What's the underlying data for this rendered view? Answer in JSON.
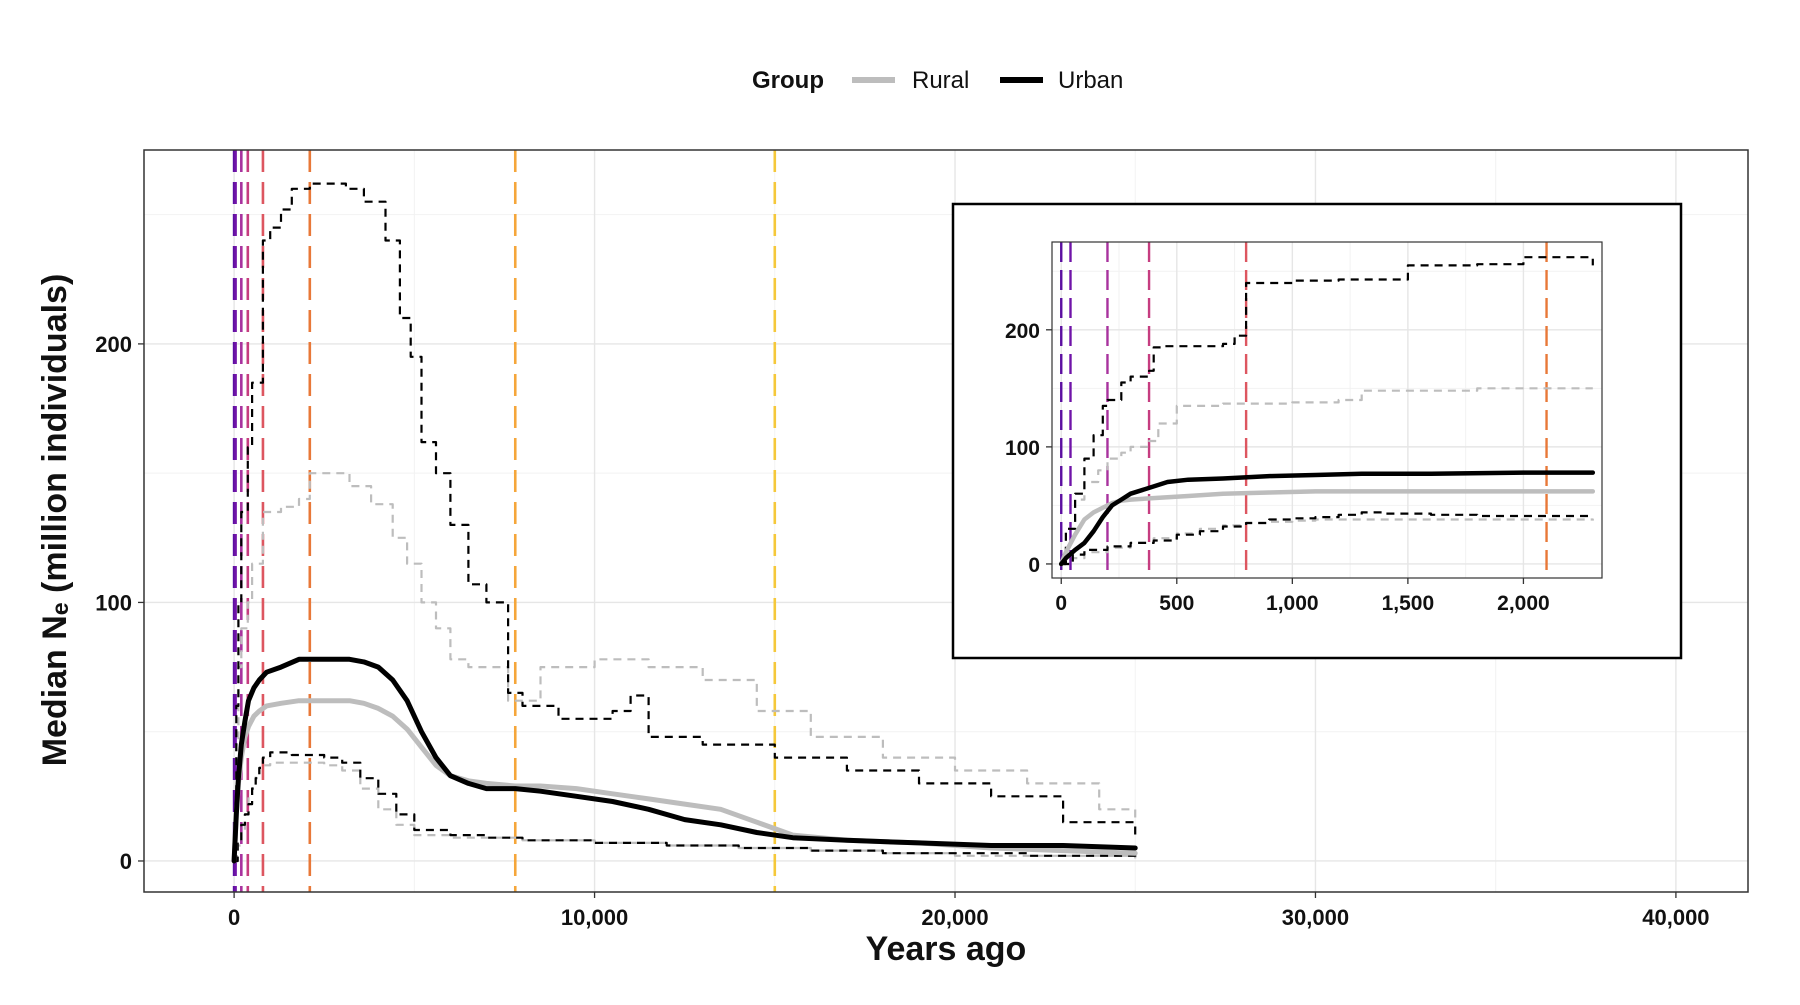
{
  "chart_data": {
    "type": "line",
    "xlabel": "Years ago",
    "ylabel": "Median Nₑ (million individuals)",
    "xlim": [
      -2500,
      42000
    ],
    "ylim": [
      -12,
      275
    ],
    "xticks": [
      0,
      10000,
      20000,
      30000,
      40000
    ],
    "xtick_labels": [
      "0",
      "10,000",
      "20,000",
      "30,000",
      "40,000"
    ],
    "yticks": [
      0,
      100,
      200
    ],
    "ytick_labels": [
      "0",
      "100",
      "200"
    ],
    "grid": true,
    "legend": {
      "title": "Group",
      "placement": "top-center",
      "entries": [
        {
          "label": "Rural",
          "color": "#bdbdbd"
        },
        {
          "label": "Urban",
          "color": "#000000"
        }
      ]
    },
    "vlines": [
      {
        "x": 0,
        "color": "#5b0fa0"
      },
      {
        "x": 40,
        "color": "#7014a8"
      },
      {
        "x": 200,
        "color": "#a8329e"
      },
      {
        "x": 380,
        "color": "#c63d80"
      },
      {
        "x": 800,
        "color": "#dd5660"
      },
      {
        "x": 2100,
        "color": "#e87838"
      },
      {
        "x": 7800,
        "color": "#f5a63a"
      },
      {
        "x": 15000,
        "color": "#f5c83a"
      }
    ],
    "series": [
      {
        "name": "Urban",
        "role": "median",
        "color": "#000000",
        "style": "solid",
        "x": [
          0,
          60,
          120,
          200,
          300,
          400,
          550,
          700,
          900,
          1300,
          1800,
          2300,
          2800,
          3200,
          3600,
          4000,
          4400,
          4800,
          5200,
          5600,
          6000,
          6500,
          7000,
          7800,
          8500,
          9500,
          10500,
          11500,
          12500,
          13500,
          14500,
          15500,
          17000,
          19000,
          21000,
          23000,
          25000
        ],
        "y": [
          0,
          18,
          32,
          45,
          54,
          62,
          67,
          70,
          73,
          75,
          78,
          78,
          78,
          78,
          77,
          75,
          70,
          62,
          50,
          40,
          33,
          30,
          28,
          28,
          27,
          25,
          23,
          20,
          16,
          14,
          11,
          9,
          8,
          7,
          6,
          6,
          5
        ]
      },
      {
        "name": "Rural",
        "role": "median",
        "color": "#bdbdbd",
        "style": "solid",
        "x": [
          0,
          60,
          120,
          200,
          300,
          400,
          550,
          700,
          900,
          1300,
          1800,
          2300,
          2800,
          3200,
          3600,
          4000,
          4400,
          4800,
          5200,
          5600,
          6000,
          6500,
          7000,
          7800,
          8500,
          9500,
          10500,
          11500,
          12500,
          13500,
          14500,
          15500,
          17000,
          19000,
          21000,
          23000,
          25000
        ],
        "y": [
          0,
          18,
          30,
          40,
          48,
          52,
          56,
          58,
          60,
          61,
          62,
          62,
          62,
          62,
          61,
          59,
          56,
          51,
          44,
          37,
          33,
          31,
          30,
          29,
          29,
          28,
          26,
          24,
          22,
          20,
          15,
          10,
          8,
          7,
          5,
          4,
          3
        ]
      },
      {
        "name": "Urban upper",
        "role": "upper",
        "color": "#000000",
        "style": "dashed",
        "x": [
          0,
          60,
          120,
          200,
          380,
          500,
          800,
          1000,
          1300,
          1600,
          2100,
          2600,
          3100,
          3600,
          4200,
          4600,
          4900,
          5200,
          5600,
          6000,
          6500,
          7000,
          7600,
          8000,
          9000,
          10500,
          11000,
          11500,
          13000,
          15000,
          17000,
          19000,
          21000,
          23000,
          25000
        ],
        "y": [
          0,
          60,
          100,
          135,
          160,
          185,
          240,
          245,
          252,
          260,
          262,
          262,
          260,
          255,
          240,
          210,
          195,
          162,
          150,
          130,
          107,
          100,
          65,
          60,
          55,
          58,
          64,
          48,
          45,
          40,
          35,
          30,
          25,
          15,
          10
        ]
      },
      {
        "name": "Rural upper",
        "role": "upper",
        "color": "#bdbdbd",
        "style": "dashed",
        "x": [
          0,
          60,
          120,
          200,
          380,
          500,
          800,
          1300,
          1800,
          2100,
          2600,
          3200,
          3800,
          4400,
          4800,
          5200,
          5600,
          6000,
          6500,
          7000,
          7600,
          8500,
          10000,
          11500,
          13000,
          14500,
          16000,
          18000,
          20000,
          22000,
          24000,
          25000
        ],
        "y": [
          0,
          45,
          75,
          90,
          100,
          115,
          135,
          137,
          140,
          150,
          150,
          145,
          138,
          125,
          115,
          100,
          90,
          78,
          75,
          75,
          62,
          75,
          78,
          75,
          70,
          58,
          48,
          40,
          35,
          30,
          20,
          15
        ]
      },
      {
        "name": "Urban lower",
        "role": "lower",
        "color": "#000000",
        "style": "dashed",
        "x": [
          0,
          100,
          200,
          300,
          400,
          500,
          600,
          700,
          800,
          1000,
          1300,
          1600,
          2000,
          2500,
          3000,
          3500,
          4000,
          4500,
          5000,
          6000,
          7000,
          8000,
          10000,
          12000,
          14000,
          16000,
          18000,
          20000,
          22000,
          25000
        ],
        "y": [
          0,
          8,
          14,
          18,
          22,
          28,
          32,
          36,
          40,
          42,
          42,
          41,
          41,
          40,
          38,
          32,
          26,
          18,
          12,
          10,
          9,
          8,
          7,
          6,
          5,
          4,
          3,
          3,
          2,
          1
        ]
      },
      {
        "name": "Rural lower",
        "role": "lower",
        "color": "#bdbdbd",
        "style": "dashed",
        "x": [
          0,
          100,
          200,
          300,
          400,
          500,
          600,
          700,
          800,
          1000,
          1300,
          1600,
          2000,
          2500,
          3000,
          3500,
          4000,
          4500,
          5000,
          6000,
          7000,
          8000,
          10000,
          12000,
          14000,
          16000,
          18000,
          20000,
          22000,
          25000
        ],
        "y": [
          0,
          6,
          12,
          18,
          25,
          30,
          34,
          36,
          37,
          38,
          38,
          38,
          38,
          37,
          35,
          28,
          20,
          14,
          10,
          9,
          9,
          8,
          7,
          6,
          5,
          4,
          3,
          2,
          2,
          1
        ]
      }
    ],
    "inset": {
      "xlim": [
        -40,
        2340
      ],
      "ylim": [
        -12,
        275
      ],
      "xticks": [
        0,
        500,
        1000,
        1500,
        2000
      ],
      "xtick_labels": [
        "0",
        "500",
        "1,000",
        "1,500",
        "2,000"
      ],
      "yticks": [
        0,
        100,
        200
      ],
      "ytick_labels": [
        "0",
        "100",
        "200"
      ],
      "vlines": [
        {
          "x": 0,
          "color": "#5b0fa0"
        },
        {
          "x": 40,
          "color": "#7014a8"
        },
        {
          "x": 200,
          "color": "#a8329e"
        },
        {
          "x": 380,
          "color": "#c63d80"
        },
        {
          "x": 800,
          "color": "#dd5660"
        },
        {
          "x": 2100,
          "color": "#e87838"
        }
      ],
      "series": [
        {
          "name": "Urban",
          "role": "median",
          "color": "#000000",
          "style": "solid",
          "x": [
            0,
            20,
            60,
            100,
            140,
            180,
            220,
            260,
            300,
            380,
            460,
            550,
            700,
            900,
            1100,
            1300,
            1600,
            2000,
            2300
          ],
          "y": [
            0,
            5,
            12,
            18,
            28,
            40,
            50,
            55,
            60,
            65,
            70,
            72,
            73,
            75,
            76,
            77,
            77,
            78,
            78
          ]
        },
        {
          "name": "Rural",
          "role": "median",
          "color": "#bdbdbd",
          "style": "solid",
          "x": [
            0,
            20,
            60,
            100,
            140,
            180,
            220,
            260,
            300,
            380,
            460,
            550,
            700,
            900,
            1100,
            1300,
            1600,
            2000,
            2300
          ],
          "y": [
            0,
            10,
            25,
            38,
            44,
            48,
            52,
            54,
            55,
            56,
            57,
            58,
            60,
            61,
            62,
            62,
            62,
            62,
            62
          ]
        },
        {
          "name": "Urban upper",
          "role": "upper",
          "color": "#000000",
          "style": "dashed",
          "x": [
            0,
            20,
            60,
            100,
            140,
            180,
            200,
            260,
            300,
            380,
            400,
            450,
            700,
            750,
            800,
            1000,
            1200,
            1450,
            1500,
            1800,
            2000,
            2100,
            2300
          ],
          "y": [
            0,
            30,
            60,
            90,
            110,
            135,
            140,
            155,
            160,
            165,
            185,
            186,
            188,
            195,
            240,
            242,
            243,
            243,
            255,
            256,
            262,
            262,
            255
          ]
        },
        {
          "name": "Rural upper",
          "role": "upper",
          "color": "#bdbdbd",
          "style": "dashed",
          "x": [
            0,
            20,
            60,
            100,
            160,
            200,
            260,
            300,
            380,
            420,
            500,
            700,
            1000,
            1200,
            1300,
            1500,
            1800,
            2100,
            2300
          ],
          "y": [
            0,
            30,
            55,
            70,
            80,
            90,
            95,
            100,
            105,
            120,
            135,
            137,
            138,
            140,
            148,
            148,
            150,
            150,
            150
          ]
        },
        {
          "name": "Urban lower",
          "role": "lower",
          "color": "#000000",
          "style": "dashed",
          "x": [
            0,
            50,
            100,
            200,
            300,
            400,
            500,
            600,
            700,
            800,
            900,
            1000,
            1100,
            1200,
            1300,
            1400,
            1600,
            1800,
            2000,
            2300
          ],
          "y": [
            0,
            8,
            12,
            15,
            18,
            20,
            25,
            28,
            32,
            35,
            38,
            39,
            40,
            42,
            44,
            43,
            42,
            41,
            41,
            40
          ]
        },
        {
          "name": "Rural lower",
          "role": "lower",
          "color": "#bdbdbd",
          "style": "dashed",
          "x": [
            0,
            50,
            100,
            200,
            300,
            400,
            500,
            600,
            700,
            800,
            900,
            1000,
            1100,
            1200,
            1300,
            1400,
            1600,
            1800,
            2000,
            2300
          ],
          "y": [
            0,
            5,
            10,
            14,
            18,
            22,
            26,
            30,
            33,
            35,
            36,
            37,
            38,
            38,
            38,
            38,
            38,
            38,
            38,
            37
          ]
        }
      ]
    }
  }
}
